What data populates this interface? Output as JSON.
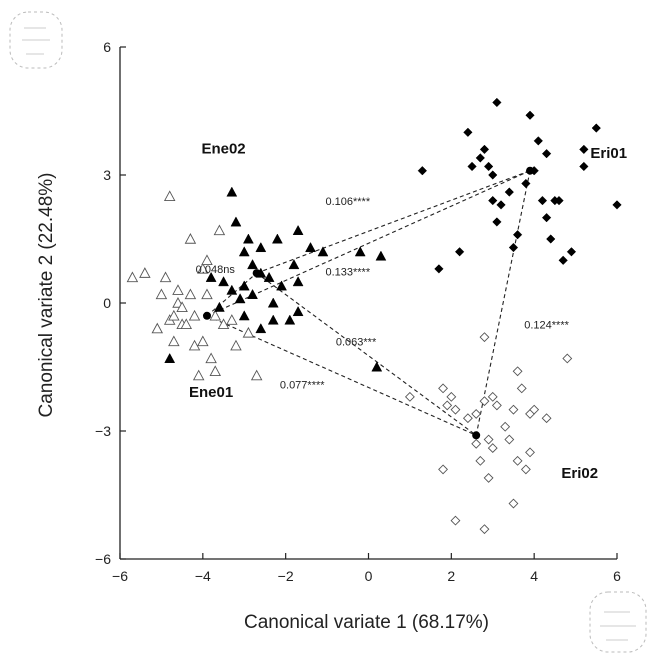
{
  "chart_data": {
    "type": "scatter",
    "title": "",
    "xlabel": "Canonical variate 1 (68.17%)",
    "ylabel": "Canonical variate 2 (22.48%)",
    "xlim": [
      -6,
      6
    ],
    "ylim": [
      -6,
      6
    ],
    "xticks": [
      -6,
      -4,
      -2,
      0,
      2,
      4,
      6
    ],
    "yticks": [
      -6,
      -3,
      0,
      3,
      6
    ],
    "xtick_labels": [
      "−6",
      "−4",
      "−2",
      "0",
      "2",
      "4",
      "6"
    ],
    "ytick_labels": [
      "−6",
      "−3",
      "0",
      "3",
      "6"
    ],
    "grid": false,
    "legend": "none",
    "group_labels": [
      {
        "text": "Ene02",
        "x": -3.5,
        "y": 3.5
      },
      {
        "text": "Eri01",
        "x": 5.8,
        "y": 3.4
      },
      {
        "text": "Ene01",
        "x": -3.8,
        "y": -2.2
      },
      {
        "text": "Eri02",
        "x": 5.1,
        "y": -4.1
      }
    ],
    "series": [
      {
        "name": "Ene01",
        "marker": "triangle-open",
        "points": [
          [
            -5.7,
            0.6
          ],
          [
            -5.4,
            0.7
          ],
          [
            -4.9,
            0.6
          ],
          [
            -5.1,
            -0.6
          ],
          [
            -4.8,
            -0.4
          ],
          [
            -4.7,
            -0.3
          ],
          [
            -4.6,
            0.0
          ],
          [
            -4.5,
            -0.5
          ],
          [
            -4.7,
            -0.9
          ],
          [
            -4.4,
            -0.5
          ],
          [
            -4.2,
            -0.3
          ],
          [
            -4.3,
            0.2
          ],
          [
            -3.9,
            0.2
          ],
          [
            -3.7,
            -0.3
          ],
          [
            -3.5,
            -0.5
          ],
          [
            -4.0,
            -0.9
          ],
          [
            -3.8,
            -1.3
          ],
          [
            -4.2,
            -1.0
          ],
          [
            -3.3,
            -0.4
          ],
          [
            -3.2,
            -1.0
          ],
          [
            -3.7,
            -1.6
          ],
          [
            -4.1,
            -1.7
          ],
          [
            -2.9,
            -0.7
          ],
          [
            -2.7,
            -1.7
          ],
          [
            -4.0,
            0.8
          ],
          [
            -3.9,
            1.0
          ],
          [
            -4.6,
            0.3
          ],
          [
            -4.8,
            2.5
          ],
          [
            -4.3,
            1.5
          ],
          [
            -3.6,
            1.7
          ],
          [
            -5.0,
            0.2
          ],
          [
            -4.5,
            -0.1
          ]
        ]
      },
      {
        "name": "Ene02",
        "marker": "triangle-filled",
        "points": [
          [
            -3.3,
            2.6
          ],
          [
            -3.2,
            1.9
          ],
          [
            -2.9,
            1.5
          ],
          [
            -2.6,
            1.3
          ],
          [
            -2.2,
            1.5
          ],
          [
            -2.8,
            0.9
          ],
          [
            -2.6,
            0.7
          ],
          [
            -2.4,
            0.6
          ],
          [
            -3.0,
            0.4
          ],
          [
            -2.8,
            0.2
          ],
          [
            -2.3,
            0.0
          ],
          [
            -2.1,
            0.4
          ],
          [
            -1.8,
            0.9
          ],
          [
            -1.7,
            0.5
          ],
          [
            -1.7,
            -0.2
          ],
          [
            -1.9,
            -0.4
          ],
          [
            -2.3,
            -0.4
          ],
          [
            -2.6,
            -0.6
          ],
          [
            -3.1,
            0.1
          ],
          [
            -3.3,
            0.3
          ],
          [
            -3.5,
            0.5
          ],
          [
            -3.8,
            0.6
          ],
          [
            -3.6,
            -0.1
          ],
          [
            -3.0,
            1.2
          ],
          [
            -1.7,
            1.7
          ],
          [
            -1.4,
            1.3
          ],
          [
            -1.1,
            1.2
          ],
          [
            -0.2,
            1.2
          ],
          [
            0.3,
            1.1
          ],
          [
            0.2,
            -1.5
          ],
          [
            -4.8,
            -1.3
          ],
          [
            -3.0,
            -0.3
          ]
        ]
      },
      {
        "name": "Eri01",
        "marker": "diamond-filled",
        "points": [
          [
            1.3,
            3.1
          ],
          [
            2.4,
            4.0
          ],
          [
            2.5,
            3.2
          ],
          [
            2.7,
            3.4
          ],
          [
            2.8,
            3.6
          ],
          [
            3.1,
            4.7
          ],
          [
            3.0,
            3.0
          ],
          [
            3.0,
            2.4
          ],
          [
            3.2,
            2.3
          ],
          [
            3.4,
            2.6
          ],
          [
            3.5,
            1.3
          ],
          [
            3.6,
            1.6
          ],
          [
            3.9,
            4.4
          ],
          [
            4.0,
            3.1
          ],
          [
            4.1,
            3.8
          ],
          [
            4.2,
            2.4
          ],
          [
            4.3,
            2.0
          ],
          [
            4.4,
            1.5
          ],
          [
            4.5,
            2.4
          ],
          [
            4.6,
            2.4
          ],
          [
            4.7,
            1.0
          ],
          [
            4.9,
            1.2
          ],
          [
            5.2,
            3.6
          ],
          [
            5.2,
            3.2
          ],
          [
            5.5,
            4.1
          ],
          [
            6.0,
            2.3
          ],
          [
            2.2,
            1.2
          ],
          [
            1.7,
            0.8
          ],
          [
            3.1,
            1.9
          ],
          [
            2.9,
            3.2
          ],
          [
            3.8,
            2.8
          ],
          [
            4.3,
            3.5
          ]
        ]
      },
      {
        "name": "Eri02",
        "marker": "diamond-open",
        "points": [
          [
            1.0,
            -2.2
          ],
          [
            1.8,
            -2.0
          ],
          [
            2.0,
            -2.2
          ],
          [
            1.9,
            -2.4
          ],
          [
            2.1,
            -2.5
          ],
          [
            2.4,
            -2.7
          ],
          [
            2.6,
            -2.6
          ],
          [
            2.8,
            -2.3
          ],
          [
            3.0,
            -2.2
          ],
          [
            3.1,
            -2.4
          ],
          [
            3.3,
            -2.9
          ],
          [
            3.5,
            -2.5
          ],
          [
            3.6,
            -1.6
          ],
          [
            3.7,
            -2.0
          ],
          [
            3.9,
            -2.6
          ],
          [
            4.0,
            -2.5
          ],
          [
            4.3,
            -2.7
          ],
          [
            4.8,
            -1.3
          ],
          [
            3.4,
            -3.2
          ],
          [
            3.6,
            -3.7
          ],
          [
            3.8,
            -3.9
          ],
          [
            3.9,
            -3.5
          ],
          [
            2.7,
            -3.7
          ],
          [
            2.9,
            -4.1
          ],
          [
            1.8,
            -3.9
          ],
          [
            2.1,
            -5.1
          ],
          [
            2.8,
            -5.3
          ],
          [
            3.5,
            -4.7
          ],
          [
            2.8,
            -0.8
          ],
          [
            2.6,
            -3.3
          ],
          [
            2.9,
            -3.2
          ],
          [
            3.0,
            -3.4
          ]
        ]
      }
    ],
    "centroids": [
      {
        "name": "Ene01",
        "x": -3.9,
        "y": -0.3
      },
      {
        "name": "Ene02",
        "x": -2.7,
        "y": 0.7
      },
      {
        "name": "Eri01",
        "x": 3.9,
        "y": 3.1
      },
      {
        "name": "Eri02",
        "x": 2.6,
        "y": -3.1
      }
    ],
    "distances": [
      {
        "from": "Ene01",
        "to": "Ene02",
        "label": "0.048ns",
        "x": -3.7,
        "y": 0.7
      },
      {
        "from": "Ene01",
        "to": "Eri01",
        "label": "0.106****",
        "x": -0.5,
        "y": 2.3
      },
      {
        "from": "Ene02",
        "to": "Eri01",
        "label": "0.133****",
        "x": -0.5,
        "y": 0.65
      },
      {
        "from": "Ene02",
        "to": "Eri02",
        "label": "0.063***",
        "x": -0.3,
        "y": -1.0
      },
      {
        "from": "Ene01",
        "to": "Eri02",
        "label": "0.077****",
        "x": -1.6,
        "y": -2.0
      },
      {
        "from": "Eri01",
        "to": "Eri02",
        "label": "0.124****",
        "x": 4.3,
        "y": -0.6
      }
    ]
  }
}
